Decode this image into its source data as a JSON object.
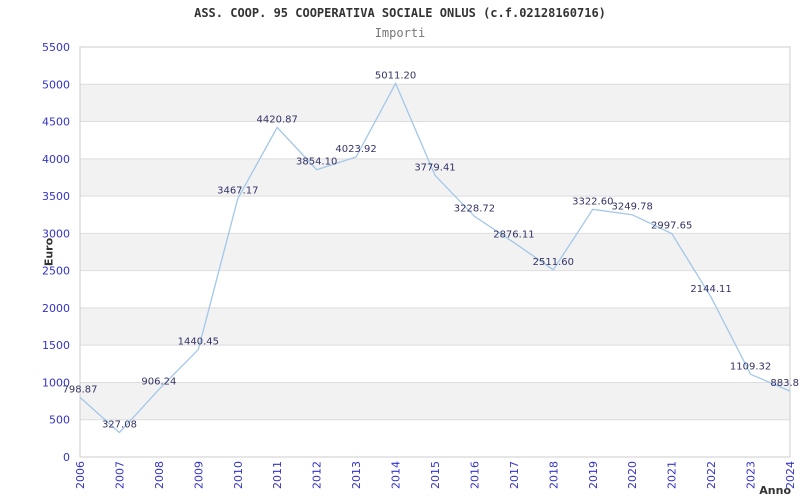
{
  "chart": {
    "title": "ASS. COOP. 95 COOPERATIVA SOCIALE ONLUS (c.f.02128160716)",
    "subtitle": "Importi"
  },
  "chart_data": {
    "type": "line",
    "title": "ASS. COOP. 95 COOPERATIVA SOCIALE ONLUS (c.f.02128160716)",
    "subtitle": "Importi",
    "x": [
      2006,
      2007,
      2008,
      2009,
      2010,
      2011,
      2012,
      2013,
      2014,
      2015,
      2016,
      2017,
      2018,
      2019,
      2020,
      2021,
      2022,
      2023,
      2024
    ],
    "values": [
      798.87,
      327.08,
      906.24,
      1440.45,
      3467.17,
      4420.87,
      3854.1,
      4023.92,
      5011.2,
      3779.41,
      3228.72,
      2876.11,
      2511.6,
      3322.6,
      3249.78,
      2997.65,
      2144.11,
      1109.32,
      883.8
    ],
    "point_labels": [
      "798.87",
      "327.08",
      "906.24",
      "1440.45",
      "3467.17",
      "4420.87",
      "3854.10",
      "4023.92",
      "5011.20",
      "3779.41",
      "3228.72",
      "2876.11",
      "2511.60",
      "3322.60",
      "3249.78",
      "2997.65",
      "2144.11",
      "1109.32",
      "883.8"
    ],
    "xlabel": "Anno",
    "ylabel": "Euro",
    "ylim": [
      0,
      5500
    ],
    "ytick_step": 500,
    "yticks": [
      0,
      500,
      1000,
      1500,
      2000,
      2500,
      3000,
      3500,
      4000,
      4500,
      5000,
      5500
    ],
    "grid": "alternating-horizontal-bands",
    "legend": "none",
    "colors": {
      "line": "#a3c7e8",
      "tick_label": "#3333cc",
      "point_label": "#333366",
      "band": "#f2f2f2",
      "grid_line": "#dddddd",
      "border": "#cccccc",
      "title": "#333333",
      "subtitle": "#777777",
      "axis_title": "#333333",
      "background": "#ffffff"
    }
  }
}
